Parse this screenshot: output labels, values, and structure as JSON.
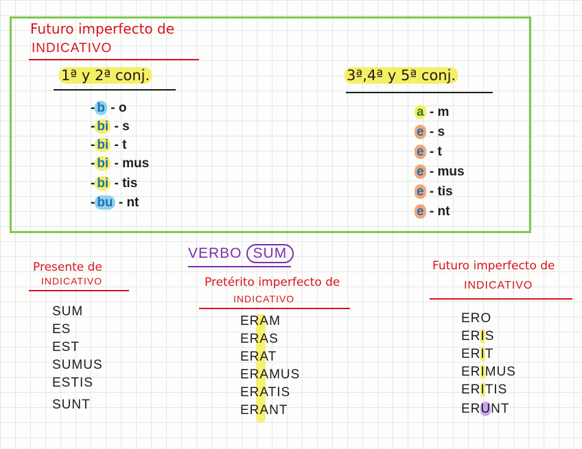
{
  "box": {
    "title_line1": "Futuro imperfecto de",
    "title_line2": "INDICATIVO",
    "group1": {
      "heading": "1ª y 2ª conj.",
      "rows": [
        {
          "stem": "b",
          "ending": "o"
        },
        {
          "stem": "bi",
          "ending": "s"
        },
        {
          "stem": "bi",
          "ending": "t"
        },
        {
          "stem": "bi",
          "ending": "mus"
        },
        {
          "stem": "bi",
          "ending": "tis"
        },
        {
          "stem": "bu",
          "ending": "nt"
        }
      ]
    },
    "group2": {
      "heading": "3ª,4ª y 5ª conj.",
      "rows": [
        {
          "vowel": "a",
          "ending": "m"
        },
        {
          "vowel": "e",
          "ending": "s"
        },
        {
          "vowel": "e",
          "ending": "t"
        },
        {
          "vowel": "e",
          "ending": "mus"
        },
        {
          "vowel": "e",
          "ending": "tis"
        },
        {
          "vowel": "e",
          "ending": "nt"
        }
      ]
    }
  },
  "verbo": {
    "label": "VERBO",
    "verb": "SUM"
  },
  "presente": {
    "title_line1": "Presente de",
    "title_line2": "INDICATIVO",
    "forms": [
      "SUM",
      "ES",
      "EST",
      "SUMUS",
      "ESTIS",
      "SUNT"
    ]
  },
  "preterito": {
    "title_line1": "Pretérito imperfecto de",
    "title_line2": "INDICATIVO",
    "forms": [
      "ERAM",
      "ERAS",
      "ERAT",
      "ERAMUS",
      "ERATIS",
      "ERANT"
    ]
  },
  "futuro": {
    "title_line1": "Futuro imperfecto de",
    "title_line2": "INDICATIVO",
    "forms": [
      {
        "pre": "ER",
        "mid": "O",
        "post": ""
      },
      {
        "pre": "ER",
        "mid": "I",
        "post": "S"
      },
      {
        "pre": "ER",
        "mid": "I",
        "post": "T"
      },
      {
        "pre": "ER",
        "mid": "I",
        "post": "MUS"
      },
      {
        "pre": "ER",
        "mid": "I",
        "post": "TIS"
      },
      {
        "pre": "ER",
        "mid": "U",
        "post": "NT"
      }
    ]
  }
}
